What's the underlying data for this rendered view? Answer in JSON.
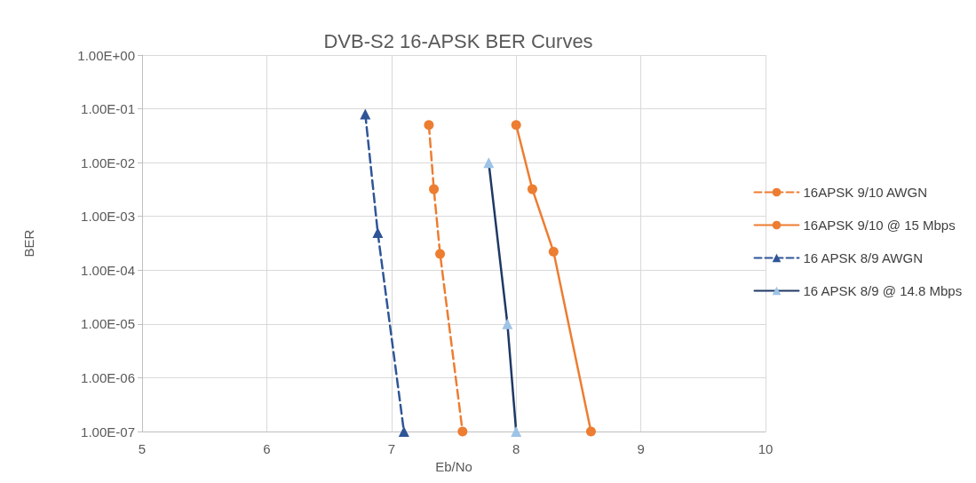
{
  "chart_data": {
    "type": "line",
    "title": "DVB-S2 16-APSK BER Curves",
    "xlabel": "Eb/No",
    "ylabel": "BER",
    "log": "y",
    "grid": true,
    "legend": "right",
    "xlim": [
      5,
      10
    ],
    "xticks": [
      5,
      6,
      7,
      8,
      9,
      10
    ],
    "ylim": [
      1e-07,
      1
    ],
    "yticks": [
      {
        "value": 1,
        "label": "1.00E+00"
      },
      {
        "value": 0.1,
        "label": "1.00E-01"
      },
      {
        "value": 0.01,
        "label": "1.00E-02"
      },
      {
        "value": 0.001,
        "label": "1.00E-03"
      },
      {
        "value": 0.0001,
        "label": "1.00E-04"
      },
      {
        "value": 1e-05,
        "label": "1.00E-05"
      },
      {
        "value": 1e-06,
        "label": "1.00E-06"
      },
      {
        "value": 1e-07,
        "label": "1.00E-07"
      }
    ],
    "series": [
      {
        "name": "16APSK 9/10 AWGN",
        "color": "#ed7d31",
        "marker": "circle",
        "line_style": "dashed",
        "x": [
          7.3,
          7.34,
          7.39,
          7.57
        ],
        "values": [
          0.05,
          0.0032,
          0.0002,
          1e-07
        ]
      },
      {
        "name": "16APSK 9/10 @ 15 Mbps",
        "color": "#ed7d31",
        "marker": "circle",
        "line_style": "solid",
        "x": [
          8.0,
          8.13,
          8.3,
          8.6
        ],
        "values": [
          0.05,
          0.0032,
          0.00022,
          1e-07
        ]
      },
      {
        "name": "16 APSK 8/9 AWGN",
        "color": "#2f5597",
        "marker": "triangle",
        "line_style": "dashed",
        "x": [
          6.79,
          6.89,
          7.1
        ],
        "values": [
          0.08,
          0.0005,
          1e-07
        ]
      },
      {
        "name": "16 APSK 8/9 @ 14.8 Mbps",
        "color": "#1f3864",
        "colors": [
          "#9dc3e6",
          "#9dc3e6",
          "#9dc3e6"
        ],
        "marker": "triangle",
        "line_style": "solid",
        "x": [
          7.78,
          7.93,
          8.0
        ],
        "values": [
          0.01,
          1e-05,
          1e-07
        ]
      }
    ]
  }
}
